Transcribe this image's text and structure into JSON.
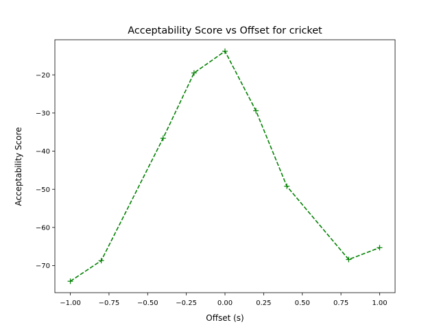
{
  "chart_data": {
    "type": "line",
    "title": "Acceptability Score vs Offset for cricket",
    "xlabel": "Offset (s)",
    "ylabel": "Acceptability Score",
    "x": [
      -1.0,
      -0.8,
      -0.4,
      -0.2,
      0.0,
      0.2,
      0.4,
      0.8,
      1.0
    ],
    "series": [
      {
        "values": [
          -74.1,
          -68.7,
          -36.6,
          -19.5,
          -13.8,
          -29.4,
          -49.2,
          -68.4,
          -65.3
        ],
        "color": "#008000",
        "line_style": "dashed",
        "marker": "plus"
      }
    ],
    "xlim": [
      -1.1,
      1.1
    ],
    "ylim": [
      -77.1,
      -10.8
    ],
    "xticks": [
      -1.0,
      -0.75,
      -0.5,
      -0.25,
      0.0,
      0.25,
      0.5,
      0.75,
      1.0
    ],
    "xtick_labels": [
      "−1.00",
      "−0.75",
      "−0.50",
      "−0.25",
      "0.00",
      "0.25",
      "0.50",
      "0.75",
      "1.00"
    ],
    "yticks": [
      -70,
      -60,
      -50,
      -40,
      -30,
      -20
    ],
    "ytick_labels": [
      "−70",
      "−60",
      "−50",
      "−40",
      "−30",
      "−20"
    ],
    "grid": false,
    "legend": "none"
  }
}
